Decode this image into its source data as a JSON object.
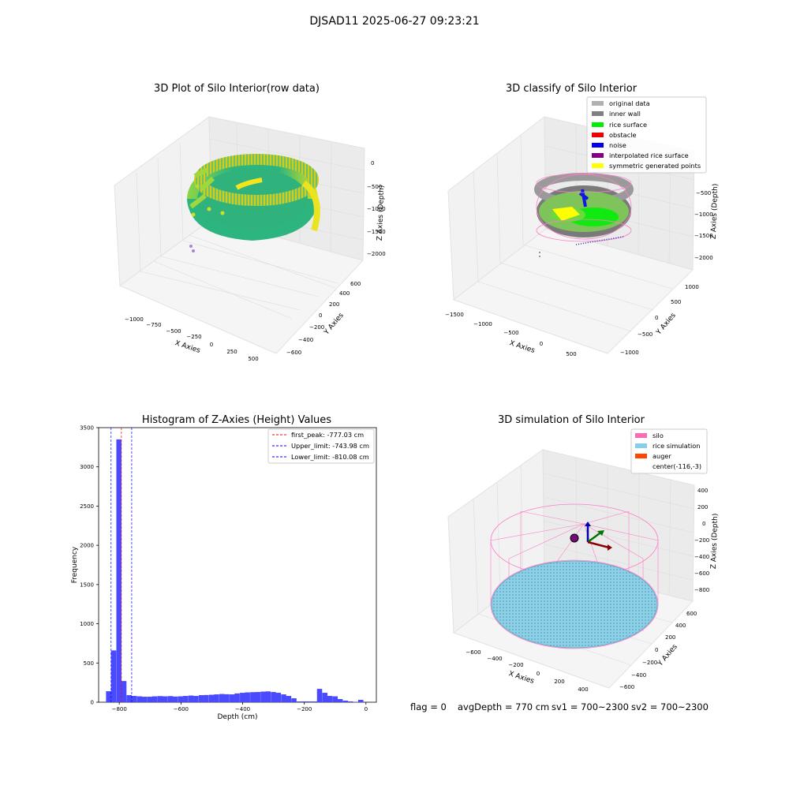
{
  "figure": {
    "suptitle": "DJSAD11 2025-06-27 09:23:21",
    "status": {
      "flag": "flag = 0",
      "avg_depth": "avgDepth = 770 cm",
      "sv1": "sv1 = 700~2300",
      "sv2": "sv2 = 700~2300"
    }
  },
  "raw3d": {
    "title": "3D Plot of Silo Interior(row data)",
    "xlabel": "X Axies",
    "ylabel": "Y Axies",
    "zlabel": "Z Axies (Depth)",
    "xticks": [
      "−1000",
      "−750",
      "−500",
      "−250",
      "0",
      "250",
      "500"
    ],
    "yticks": [
      "−600",
      "−400",
      "−200",
      "0",
      "200",
      "400",
      "600"
    ],
    "zticks": [
      "0",
      "−500",
      "−1000",
      "−1500",
      "−2000"
    ],
    "colors": {
      "low": "#2cb57e",
      "mid": "#8ed645",
      "high": "#f2e51d",
      "outlier": "#a886c9"
    }
  },
  "classify3d": {
    "title": "3D classify of Silo Interior",
    "xticks": [
      "−1500",
      "−1000",
      "−500",
      "0",
      "500"
    ],
    "yticks": [
      "−1000",
      "−500",
      "0",
      "500",
      "1000"
    ],
    "zticks": [
      "−500",
      "−1000",
      "−1500",
      "−2000"
    ],
    "xlabel": "X Axies",
    "ylabel": "Y Axies",
    "zlabel": "Z Axies (Depth)",
    "legend": [
      {
        "label": "original data",
        "color": "#b0b0b0"
      },
      {
        "label": "inner wall",
        "color": "#808080"
      },
      {
        "label": "rice surface",
        "color": "#00ee00"
      },
      {
        "label": "obstacle",
        "color": "#ee0000"
      },
      {
        "label": "noise",
        "color": "#0000ee"
      },
      {
        "label": "interpolated rice surface",
        "color": "#800080"
      },
      {
        "label": "symmetric generated points",
        "color": "#ffff00"
      }
    ]
  },
  "hist": {
    "title": "Histogram of Z-Axies (Height) Values",
    "xlabel": "Depth (cm)",
    "ylabel": "Frequency",
    "legend": [
      {
        "label": "first_peak: -777.03 cm",
        "color": "#ff0000"
      },
      {
        "label": "Upper_limit: -743.98 cm",
        "color": "#0000ff"
      },
      {
        "label": "Lower_limit: -810.08 cm",
        "color": "#0000ff"
      }
    ],
    "xtick_labels": [
      "−800",
      "−600",
      "−400",
      "−200",
      "0"
    ],
    "ytick_labels": [
      "0",
      "500",
      "1000",
      "1500",
      "2000",
      "2500",
      "3000",
      "3500"
    ],
    "bar_color": "#4a4aff"
  },
  "sim3d": {
    "title": "3D simulation of Silo Interior",
    "xlabel": "X Axies",
    "ylabel": "Y Axies",
    "zlabel": "Z Axies (Depth)",
    "xticks": [
      "−600",
      "−400",
      "−200",
      "0",
      "200",
      "400"
    ],
    "yticks": [
      "−600",
      "−400",
      "−200",
      "0",
      "200",
      "400",
      "600"
    ],
    "zticks": [
      "400",
      "200",
      "0",
      "−200",
      "−400",
      "−600",
      "−800"
    ],
    "legend": [
      {
        "label": "silo",
        "color": "#ff69b4"
      },
      {
        "label": "rice simulation",
        "color": "#87ceeb"
      },
      {
        "label": "auger",
        "color": "#ff4500"
      },
      {
        "label": "center(-116,-3)",
        "color": ""
      }
    ]
  },
  "chart_data": [
    {
      "type": "scatter",
      "title": "3D Plot of Silo Interior(row data)",
      "xlabel": "X Axies",
      "ylabel": "Y Axies",
      "zlabel": "Z Axies (Depth)",
      "xlim": [
        -1100,
        550
      ],
      "ylim": [
        -650,
        650
      ],
      "zlim": [
        -2200,
        0
      ]
    },
    {
      "type": "scatter",
      "title": "3D classify of Silo Interior",
      "xlabel": "X Axies",
      "ylabel": "Y Axies",
      "zlabel": "Z Axies (Depth)",
      "xlim": [
        -1550,
        800
      ],
      "ylim": [
        -1100,
        1100
      ],
      "zlim": [
        -2200,
        0
      ],
      "legend": [
        "original data",
        "inner wall",
        "rice surface",
        "obstacle",
        "noise",
        "interpolated rice surface",
        "symmetric generated points"
      ]
    },
    {
      "type": "bar",
      "title": "Histogram of Z-Axies (Height) Values",
      "xlabel": "Depth (cm)",
      "ylabel": "Frequency",
      "xlim": [
        -850,
        40
      ],
      "ylim": [
        0,
        3500
      ],
      "bin_width": 16.5,
      "bins": [
        {
          "x": -818,
          "count": 140
        },
        {
          "x": -802,
          "count": 660
        },
        {
          "x": -785,
          "count": 3350
        },
        {
          "x": -769,
          "count": 270
        },
        {
          "x": -752,
          "count": 90
        },
        {
          "x": -736,
          "count": 80
        },
        {
          "x": -719,
          "count": 75
        },
        {
          "x": -703,
          "count": 70
        },
        {
          "x": -686,
          "count": 70
        },
        {
          "x": -670,
          "count": 75
        },
        {
          "x": -653,
          "count": 78
        },
        {
          "x": -637,
          "count": 75
        },
        {
          "x": -620,
          "count": 78
        },
        {
          "x": -604,
          "count": 72
        },
        {
          "x": -587,
          "count": 75
        },
        {
          "x": -571,
          "count": 80
        },
        {
          "x": -554,
          "count": 85
        },
        {
          "x": -538,
          "count": 80
        },
        {
          "x": -521,
          "count": 90
        },
        {
          "x": -505,
          "count": 92
        },
        {
          "x": -488,
          "count": 95
        },
        {
          "x": -472,
          "count": 100
        },
        {
          "x": -455,
          "count": 105
        },
        {
          "x": -439,
          "count": 102
        },
        {
          "x": -422,
          "count": 100
        },
        {
          "x": -406,
          "count": 112
        },
        {
          "x": -389,
          "count": 120
        },
        {
          "x": -373,
          "count": 125
        },
        {
          "x": -356,
          "count": 128
        },
        {
          "x": -340,
          "count": 130
        },
        {
          "x": -323,
          "count": 135
        },
        {
          "x": -307,
          "count": 138
        },
        {
          "x": -290,
          "count": 130
        },
        {
          "x": -274,
          "count": 120
        },
        {
          "x": -257,
          "count": 100
        },
        {
          "x": -241,
          "count": 80
        },
        {
          "x": -224,
          "count": 50
        },
        {
          "x": -208,
          "count": 10
        },
        {
          "x": -191,
          "count": 10
        },
        {
          "x": -175,
          "count": 10
        },
        {
          "x": -158,
          "count": 10
        },
        {
          "x": -142,
          "count": 170
        },
        {
          "x": -125,
          "count": 120
        },
        {
          "x": -109,
          "count": 80
        },
        {
          "x": -92,
          "count": 75
        },
        {
          "x": -76,
          "count": 40
        },
        {
          "x": -59,
          "count": 20
        },
        {
          "x": -43,
          "count": 10
        },
        {
          "x": -26,
          "count": 5
        },
        {
          "x": -10,
          "count": 30
        }
      ],
      "reference_lines": [
        {
          "label": "first_peak: -777.03 cm",
          "x": -777.03,
          "color": "#ff0000",
          "style": "dashed"
        },
        {
          "label": "Upper_limit: -743.98 cm",
          "x": -743.98,
          "color": "#0000ff",
          "style": "dashed"
        },
        {
          "label": "Lower_limit: -810.08 cm",
          "x": -810.08,
          "color": "#0000ff",
          "style": "dashed"
        }
      ],
      "legend_position": "top-right"
    },
    {
      "type": "scatter",
      "title": "3D simulation of Silo Interior",
      "xlabel": "X Axies",
      "ylabel": "Y Axies",
      "zlabel": "Z Axies (Depth)",
      "xlim": [
        -700,
        500
      ],
      "ylim": [
        -700,
        700
      ],
      "zlim": [
        -900,
        450
      ],
      "legend": [
        "silo",
        "rice simulation",
        "auger",
        "center(-116,-3)"
      ]
    }
  ]
}
